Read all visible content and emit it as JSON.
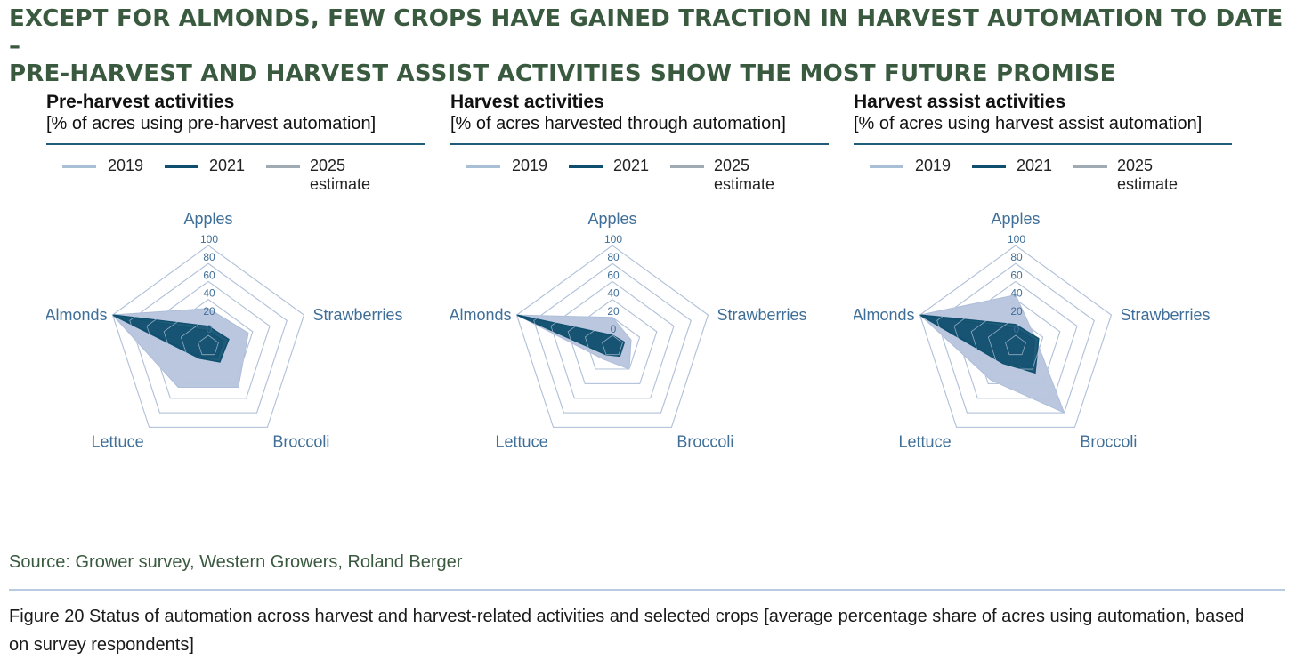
{
  "headline": {
    "line1": "EXCEPT FOR ALMONDS, FEW CROPS HAVE GAINED TRACTION IN HARVEST AUTOMATION TO DATE –",
    "line2": "PRE-HARVEST AND HARVEST ASSIST ACTIVITIES SHOW THE MOST FUTURE PROMISE"
  },
  "colors": {
    "headline": "#3a5a40",
    "s2019": "#a9bfd6",
    "s2021": "#0f4f6e",
    "s2025": "#a0aab3",
    "fill2025": "#aebdd9",
    "grid": "#8fa6c7",
    "label": "#3f6f99"
  },
  "chart_data": [
    {
      "type": "radar",
      "title": "Pre-harvest activities",
      "subtitle": "[% of acres using pre-harvest automation]",
      "axes": [
        "Apples",
        "Strawberries",
        "Broccoli",
        "Lettuce",
        "Almonds"
      ],
      "ticks": [
        "0",
        "20",
        "40",
        "60",
        "80",
        "100"
      ],
      "rlim": [
        0,
        100
      ],
      "legend": [
        {
          "label": "2019",
          "sublabel": ""
        },
        {
          "label": "2021",
          "sublabel": ""
        },
        {
          "label": "2025",
          "sublabel": "estimate"
        }
      ],
      "series": [
        {
          "name": "2025 estimate",
          "values": [
            30,
            35,
            45,
            45,
            100
          ]
        },
        {
          "name": "2019",
          "values": [
            5,
            6,
            5,
            3,
            100
          ]
        },
        {
          "name": "2021",
          "values": [
            10,
            12,
            10,
            5,
            100
          ]
        }
      ]
    },
    {
      "type": "radar",
      "title": "Harvest activities",
      "subtitle": "[% of acres harvested through automation]",
      "axes": [
        "Apples",
        "Strawberries",
        "Broccoli",
        "Lettuce",
        "Almonds"
      ],
      "ticks": [
        "0",
        "20",
        "40",
        "60",
        "80",
        "100"
      ],
      "rlim": [
        0,
        100
      ],
      "legend": [
        {
          "label": "2019",
          "sublabel": ""
        },
        {
          "label": "2021",
          "sublabel": ""
        },
        {
          "label": "2025",
          "sublabel": "estimate"
        }
      ],
      "series": [
        {
          "name": "2025 estimate",
          "values": [
            20,
            10,
            20,
            6,
            100
          ]
        },
        {
          "name": "2019",
          "values": [
            0,
            2,
            2,
            0,
            100
          ]
        },
        {
          "name": "2021",
          "values": [
            0,
            2,
            2,
            0,
            100
          ]
        }
      ]
    },
    {
      "type": "radar",
      "title": "Harvest assist activities",
      "subtitle": "[% of acres using harvest assist automation]",
      "axes": [
        "Apples",
        "Strawberries",
        "Broccoli",
        "Lettuce",
        "Almonds"
      ],
      "ticks": [
        "0",
        "20",
        "40",
        "60",
        "80",
        "100"
      ],
      "rlim": [
        0,
        100
      ],
      "legend": [
        {
          "label": "2019",
          "sublabel": ""
        },
        {
          "label": "2021",
          "sublabel": ""
        },
        {
          "label": "2025",
          "sublabel": "estimate"
        }
      ],
      "series": [
        {
          "name": "2025 estimate",
          "values": [
            45,
            12,
            80,
            35,
            100
          ]
        },
        {
          "name": "2019",
          "values": [
            8,
            10,
            20,
            10,
            100
          ]
        },
        {
          "name": "2021",
          "values": [
            12,
            15,
            25,
            12,
            100
          ]
        }
      ]
    }
  ],
  "source": "Source: Grower survey, Western Growers, Roland Berger",
  "caption": "Figure 20 Status of automation across harvest and harvest-related activities and selected crops [average  percentage share of acres using automation, based on survey respondents]"
}
